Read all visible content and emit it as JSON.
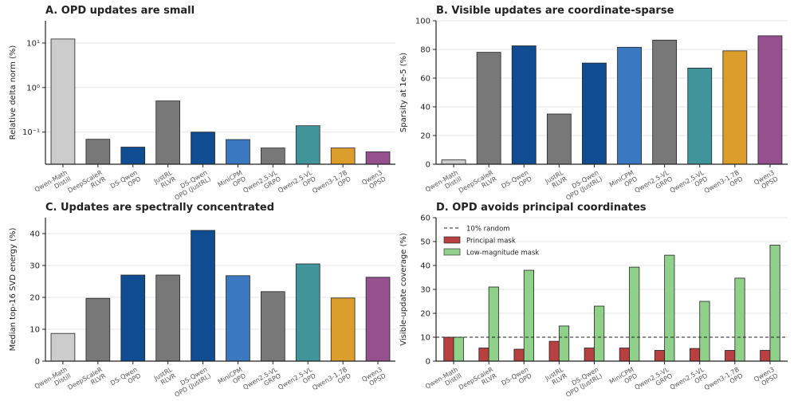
{
  "chart_data": [
    {
      "type": "bar",
      "title": "A. OPD updates are small",
      "ylabel": "Relative delta norm (%)",
      "log": true,
      "grid": true,
      "categories": [
        [
          "Qwen-Math",
          "Distill"
        ],
        [
          "DeepScaleR",
          "RLVR"
        ],
        [
          "DS-Qwen",
          "OPD"
        ],
        [
          "JustRL",
          "RLVR"
        ],
        [
          "DS-Qwen",
          "OPD (JustRL)"
        ],
        [
          "MiniCPM",
          "OPD"
        ],
        [
          "Qwen2.5-VL",
          "GRPO"
        ],
        [
          "Qwen2.5-VL",
          "OPD"
        ],
        [
          "Qwen3-1.7B",
          "OPD"
        ],
        [
          "Qwen3",
          "OPSD"
        ]
      ],
      "values": [
        12.3,
        0.069,
        0.046,
        0.5,
        0.1,
        0.068,
        0.044,
        0.139,
        0.044,
        0.036
      ],
      "colors": [
        "#cccccc",
        "#787878",
        "#0f4c92",
        "#787878",
        "#0f4c92",
        "#3a78c0",
        "#787878",
        "#40959b",
        "#db9e2a",
        "#96508e"
      ],
      "ylim": [
        0.019,
        31.6
      ],
      "yticks": [
        {
          "value": 0.1,
          "label": "10⁻¹"
        },
        {
          "value": 1,
          "label": "10⁰"
        },
        {
          "value": 10,
          "label": "10¹"
        }
      ]
    },
    {
      "type": "bar",
      "title": "B. Visible updates are coordinate-sparse",
      "ylabel": "Sparsity at 1e-5 (%)",
      "log": false,
      "grid": true,
      "categories": [
        [
          "Qwen-Math",
          "Distill"
        ],
        [
          "DeepScaleR",
          "RLVR"
        ],
        [
          "DS-Qwen",
          "OPD"
        ],
        [
          "JustRL",
          "RLVR"
        ],
        [
          "DS-Qwen",
          "OPD (JustRL)"
        ],
        [
          "MiniCPM",
          "OPD"
        ],
        [
          "Qwen2.5-VL",
          "GRPO"
        ],
        [
          "Qwen2.5-VL",
          "OPD"
        ],
        [
          "Qwen3-1.7B",
          "OPD"
        ],
        [
          "Qwen3",
          "OPSD"
        ]
      ],
      "values": [
        3,
        78,
        82.5,
        35,
        70.5,
        81.5,
        86.5,
        67,
        79,
        89.5
      ],
      "colors": [
        "#cccccc",
        "#787878",
        "#0f4c92",
        "#787878",
        "#0f4c92",
        "#3a78c0",
        "#787878",
        "#40959b",
        "#db9e2a",
        "#96508e"
      ],
      "ylim": [
        0,
        100
      ],
      "yticks": [
        0,
        20,
        40,
        60,
        80,
        100
      ]
    },
    {
      "type": "bar",
      "title": "C. Updates are spectrally concentrated",
      "ylabel": "Median top-16 SVD energy (%)",
      "log": false,
      "grid": true,
      "categories": [
        [
          "Qwen-Math",
          "Distill"
        ],
        [
          "DeepScaleR",
          "RLVR"
        ],
        [
          "DS-Qwen",
          "OPD"
        ],
        [
          "JustRL",
          "RLVR"
        ],
        [
          "DS-Qwen",
          "OPD (JustRL)"
        ],
        [
          "MiniCPM",
          "OPD"
        ],
        [
          "Qwen2.5-VL",
          "GRPO"
        ],
        [
          "Qwen2.5-VL",
          "OPD"
        ],
        [
          "Qwen3-1.7B",
          "OPD"
        ],
        [
          "Qwen3",
          "OPSD"
        ]
      ],
      "values": [
        8.7,
        19.7,
        27,
        27,
        41,
        26.8,
        21.8,
        30.5,
        19.8,
        26.3
      ],
      "colors": [
        "#cccccc",
        "#787878",
        "#0f4c92",
        "#787878",
        "#0f4c92",
        "#3a78c0",
        "#787878",
        "#40959b",
        "#db9e2a",
        "#96508e"
      ],
      "ylim": [
        0,
        45
      ],
      "yticks": [
        0,
        10,
        20,
        30,
        40
      ]
    },
    {
      "type": "grouped_bar",
      "title": "D. OPD avoids principal coordinates",
      "ylabel": "Visible-update coverage (%)",
      "log": false,
      "grid": true,
      "legend": "upper left",
      "categories": [
        [
          "Qwen-Math",
          "Distill"
        ],
        [
          "DeepScaleR",
          "RLVR"
        ],
        [
          "DS-Qwen",
          "OPD"
        ],
        [
          "JustRL",
          "RLVR"
        ],
        [
          "DS-Qwen",
          "OPD (JustRL)"
        ],
        [
          "MiniCPM",
          "OPD"
        ],
        [
          "Qwen2.5-VL",
          "GRPO"
        ],
        [
          "Qwen2.5-VL",
          "OPD"
        ],
        [
          "Qwen3-1.7B",
          "OPD"
        ],
        [
          "Qwen3",
          "OPSD"
        ]
      ],
      "reference": {
        "name": "10% random",
        "value": 10
      },
      "series": [
        {
          "name": "Principal mask",
          "color": "#b84040",
          "values": [
            10,
            5.5,
            5,
            8.3,
            5.5,
            5.5,
            4.5,
            5.3,
            4.5,
            4.5
          ]
        },
        {
          "name": "Low-magnitude mask",
          "color": "#8fd08a",
          "values": [
            10,
            31,
            38,
            14.7,
            23,
            39.3,
            44.3,
            25,
            34.7,
            48.5
          ]
        }
      ],
      "ylim": [
        0,
        60
      ],
      "yticks": [
        0,
        10,
        20,
        30,
        40,
        50,
        60
      ]
    }
  ]
}
